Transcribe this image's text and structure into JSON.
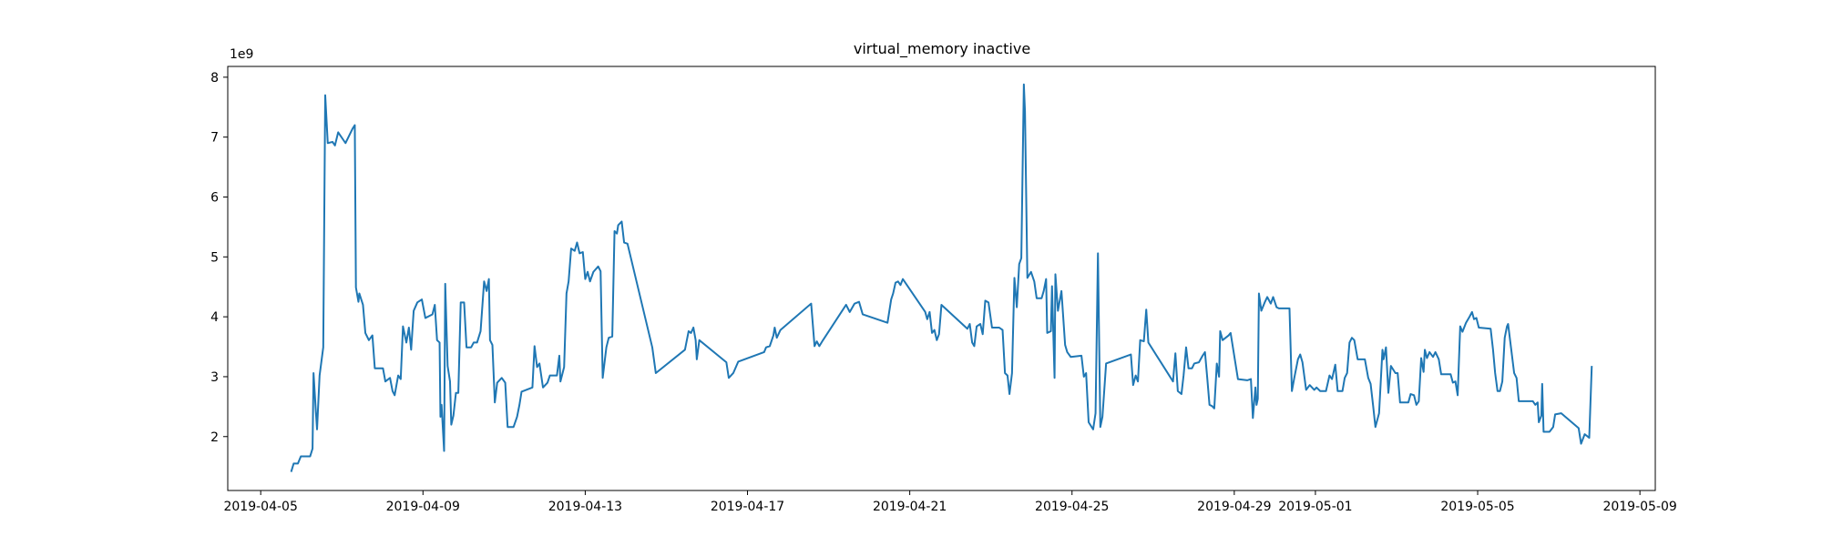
{
  "chart_data": {
    "type": "line",
    "title": "virtual_memory inactive",
    "y_offset_label": "1e9",
    "color": "#1f77b4",
    "xlim": [
      "2019-04-04 04:30",
      "2019-05-09 09:05"
    ],
    "xticks": [
      "2019-04-05",
      "2019-04-09",
      "2019-04-13",
      "2019-04-17",
      "2019-04-21",
      "2019-04-25",
      "2019-04-29",
      "2019-05-01",
      "2019-05-05",
      "2019-05-09"
    ],
    "ylim": [
      1.1,
      8.18
    ],
    "yticks": [
      2,
      3,
      4,
      5,
      6,
      7,
      8
    ],
    "x": [
      "2019-04-05 18:00",
      "2019-04-05 19:30",
      "2019-04-05 22:00",
      "2019-04-05 23:45",
      "2019-04-06 05:15",
      "2019-04-06 06:40",
      "2019-04-06 07:15",
      "2019-04-06 08:40",
      "2019-04-06 09:20",
      "2019-04-06 10:50",
      "2019-04-06 13:00",
      "2019-04-06 14:10",
      "2019-04-06 15:40",
      "2019-04-06 18:30",
      "2019-04-06 19:55",
      "2019-04-06 21:50",
      "2019-04-07 02:10",
      "2019-04-07 06:20",
      "2019-04-07 07:40",
      "2019-04-07 08:20",
      "2019-04-07 09:50",
      "2019-04-07 10:20",
      "2019-04-07 12:30",
      "2019-04-07 13:55",
      "2019-04-07 16:00",
      "2019-04-07 18:05",
      "2019-04-07 19:30",
      "2019-04-08 00:20",
      "2019-04-08 01:45",
      "2019-04-08 04:30",
      "2019-04-08 06:00",
      "2019-04-08 07:15",
      "2019-04-08 09:20",
      "2019-04-08 10:50",
      "2019-04-08 12:10",
      "2019-04-08 14:10",
      "2019-04-08 15:40",
      "2019-04-08 17:00",
      "2019-04-08 18:30",
      "2019-04-08 20:40",
      "2019-04-08 23:20",
      "2019-04-09 01:25",
      "2019-04-09 05:35",
      "2019-04-09 07:00",
      "2019-04-09 08:20",
      "2019-04-09 09:50",
      "2019-04-09 10:20",
      "2019-04-09 11:00",
      "2019-04-09 12:30",
      "2019-04-09 13:10",
      "2019-04-09 14:35",
      "2019-04-09 16:00",
      "2019-04-09 16:45",
      "2019-04-09 18:00",
      "2019-04-09 19:30",
      "2019-04-09 20:55",
      "2019-04-09 22:20",
      "2019-04-10 00:20",
      "2019-04-10 01:45",
      "2019-04-10 04:30",
      "2019-04-10 06:00",
      "2019-04-10 08:00",
      "2019-04-10 10:05",
      "2019-04-10 12:10",
      "2019-04-10 13:40",
      "2019-04-10 15:00",
      "2019-04-10 15:40",
      "2019-04-10 17:05",
      "2019-04-10 18:30",
      "2019-04-10 19:55",
      "2019-04-10 22:35",
      "2019-04-11 00:40",
      "2019-04-11 02:05",
      "2019-04-11 05:35",
      "2019-04-11 07:40",
      "2019-04-11 09:05",
      "2019-04-11 10:20",
      "2019-04-11 16:45",
      "2019-04-11 18:00",
      "2019-04-11 19:30",
      "2019-04-11 20:55",
      "2019-04-11 23:00",
      "2019-04-12 01:40",
      "2019-04-12 03:05",
      "2019-04-12 07:15",
      "2019-04-12 08:40",
      "2019-04-12 09:20",
      "2019-04-12 11:30",
      "2019-04-12 12:55",
      "2019-04-12 14:10",
      "2019-04-12 15:40",
      "2019-04-12 17:45",
      "2019-04-12 19:10",
      "2019-04-12 20:40",
      "2019-04-12 22:35",
      "2019-04-13 00:00",
      "2019-04-13 01:25",
      "2019-04-13 02:50",
      "2019-04-13 04:50",
      "2019-04-13 07:40",
      "2019-04-13 09:05",
      "2019-04-13 10:20",
      "2019-04-13 12:30",
      "2019-04-13 13:55",
      "2019-04-13 16:00",
      "2019-04-13 17:20",
      "2019-04-13 18:45",
      "2019-04-13 19:30",
      "2019-04-13 21:35",
      "2019-04-13 23:00",
      "2019-04-14 01:00",
      "2019-04-14 15:40",
      "2019-04-14 17:45",
      "2019-04-15 11:00",
      "2019-04-15 13:10",
      "2019-04-15 14:35",
      "2019-04-15 16:00",
      "2019-04-15 17:20",
      "2019-04-15 18:00",
      "2019-04-15 19:30",
      "2019-04-16 11:30",
      "2019-04-16 12:55",
      "2019-04-16 15:35",
      "2019-04-16 18:30",
      "2019-04-17 09:50",
      "2019-04-17 11:00",
      "2019-04-17 13:10",
      "2019-04-17 15:20",
      "2019-04-17 16:05",
      "2019-04-17 17:20",
      "2019-04-17 19:30",
      "2019-04-18 13:40",
      "2019-04-18 15:40",
      "2019-04-18 17:00",
      "2019-04-18 18:30",
      "2019-04-18 20:40",
      "2019-04-19 10:20",
      "2019-04-19 12:30",
      "2019-04-19 15:20",
      "2019-04-19 18:00",
      "2019-04-19 20:10",
      "2019-04-20 10:50",
      "2019-04-20 13:00",
      "2019-04-20 14:10",
      "2019-04-20 15:35",
      "2019-04-20 17:05",
      "2019-04-20 18:30",
      "2019-04-20 19:55",
      "2019-04-21 09:10",
      "2019-04-21 10:20",
      "2019-04-21 11:45",
      "2019-04-21 13:10",
      "2019-04-21 14:35",
      "2019-04-21 16:00",
      "2019-04-21 17:20",
      "2019-04-21 18:45",
      "2019-04-22 10:05",
      "2019-04-22 11:30",
      "2019-04-22 12:55",
      "2019-04-22 14:10",
      "2019-04-22 15:35",
      "2019-04-22 17:45",
      "2019-04-22 19:10",
      "2019-04-22 20:40",
      "2019-04-22 22:35",
      "2019-04-23 00:40",
      "2019-04-23 04:50",
      "2019-04-23 06:55",
      "2019-04-23 08:20",
      "2019-04-23 09:50",
      "2019-04-23 11:00",
      "2019-04-23 12:30",
      "2019-04-23 13:55",
      "2019-04-23 15:20",
      "2019-04-23 16:45",
      "2019-04-23 18:00",
      "2019-04-23 19:30",
      "2019-04-23 20:10",
      "2019-04-23 21:35",
      "2019-04-23 23:45",
      "2019-04-24 01:40",
      "2019-04-24 03:05",
      "2019-04-24 06:00",
      "2019-04-24 07:15",
      "2019-04-24 08:40",
      "2019-04-24 09:20",
      "2019-04-24 11:30",
      "2019-04-24 12:10",
      "2019-04-24 13:40",
      "2019-04-24 14:10",
      "2019-04-24 15:40",
      "2019-04-24 17:45",
      "2019-04-24 19:55",
      "2019-04-24 21:10",
      "2019-04-24 23:15",
      "2019-04-25 05:35",
      "2019-04-25 07:00",
      "2019-04-25 08:20",
      "2019-04-25 09:50",
      "2019-04-25 12:30",
      "2019-04-25 13:55",
      "2019-04-25 15:20",
      "2019-04-25 16:45",
      "2019-04-25 18:00",
      "2019-04-25 20:10",
      "2019-04-26 10:50",
      "2019-04-26 12:10",
      "2019-04-26 13:40",
      "2019-04-26 15:00",
      "2019-04-26 16:20",
      "2019-04-26 18:30",
      "2019-04-26 19:55",
      "2019-04-26 21:10",
      "2019-04-27 11:45",
      "2019-04-27 13:10",
      "2019-04-27 14:35",
      "2019-04-27 16:45",
      "2019-04-27 18:00",
      "2019-04-27 19:30",
      "2019-04-27 20:55",
      "2019-04-27 23:00",
      "2019-04-28 00:20",
      "2019-04-28 03:05",
      "2019-04-28 05:15",
      "2019-04-28 06:40",
      "2019-04-28 08:00",
      "2019-04-28 09:20",
      "2019-04-28 10:50",
      "2019-04-28 12:10",
      "2019-04-28 13:40",
      "2019-04-28 15:00",
      "2019-04-28 15:40",
      "2019-04-28 17:05",
      "2019-04-28 20:40",
      "2019-04-28 21:50",
      "2019-04-29 02:10",
      "2019-04-29 07:40",
      "2019-04-29 09:50",
      "2019-04-29 11:00",
      "2019-04-29 12:30",
      "2019-04-29 13:10",
      "2019-04-29 13:55",
      "2019-04-29 14:35",
      "2019-04-29 16:00",
      "2019-04-29 18:00",
      "2019-04-29 19:30",
      "2019-04-29 21:35",
      "2019-04-29 23:00",
      "2019-04-30 01:00",
      "2019-04-30 02:25",
      "2019-04-30 08:40",
      "2019-04-30 10:05",
      "2019-04-30 11:30",
      "2019-04-30 13:40",
      "2019-04-30 15:00",
      "2019-04-30 16:20",
      "2019-04-30 18:30",
      "2019-04-30 20:40",
      "2019-04-30 23:20",
      "2019-05-01 00:40",
      "2019-05-01 02:50",
      "2019-05-01 06:15",
      "2019-05-01 08:20",
      "2019-05-01 09:50",
      "2019-05-01 11:45",
      "2019-05-01 13:10",
      "2019-05-01 16:00",
      "2019-05-01 17:20",
      "2019-05-01 18:45",
      "2019-05-01 20:10",
      "2019-05-01 21:35",
      "2019-05-01 23:00",
      "2019-05-02 01:00",
      "2019-05-02 05:15",
      "2019-05-02 07:15",
      "2019-05-02 08:40",
      "2019-05-02 10:05",
      "2019-05-02 11:30",
      "2019-05-02 13:40",
      "2019-05-02 15:40",
      "2019-05-02 16:20",
      "2019-05-02 17:45",
      "2019-05-02 19:10",
      "2019-05-02 20:40",
      "2019-05-02 23:20",
      "2019-05-03 00:40",
      "2019-05-03 02:05",
      "2019-05-03 07:00",
      "2019-05-03 08:20",
      "2019-05-03 10:20",
      "2019-05-03 11:45",
      "2019-05-03 13:10",
      "2019-05-03 14:35",
      "2019-05-03 16:00",
      "2019-05-03 16:45",
      "2019-05-03 18:00",
      "2019-05-03 19:30",
      "2019-05-03 21:35",
      "2019-05-03 23:00",
      "2019-05-04 01:00",
      "2019-05-04 02:25",
      "2019-05-04 08:00",
      "2019-05-04 09:20",
      "2019-05-04 10:50",
      "2019-05-04 12:10",
      "2019-05-04 13:40",
      "2019-05-04 15:00",
      "2019-05-04 17:05",
      "2019-05-04 19:10",
      "2019-05-04 20:40",
      "2019-05-04 21:50",
      "2019-05-04 23:15",
      "2019-05-05 00:40",
      "2019-05-05 07:40",
      "2019-05-05 09:05",
      "2019-05-05 10:20",
      "2019-05-05 11:45",
      "2019-05-05 13:10",
      "2019-05-05 14:35",
      "2019-05-05 16:00",
      "2019-05-05 17:20",
      "2019-05-05 18:00",
      "2019-05-05 21:35",
      "2019-05-05 23:00",
      "2019-05-06 00:20",
      "2019-05-06 08:40",
      "2019-05-06 10:05",
      "2019-05-06 11:30",
      "2019-05-06 12:10",
      "2019-05-06 13:40",
      "2019-05-06 14:10",
      "2019-05-06 15:00",
      "2019-05-06 18:30",
      "2019-05-06 20:40",
      "2019-05-06 21:50",
      "2019-05-07 01:25",
      "2019-05-07 11:45",
      "2019-05-07 13:10",
      "2019-05-07 15:20",
      "2019-05-07 18:00",
      "2019-05-07 19:30"
    ],
    "values": [
      1.41,
      1.55,
      1.55,
      1.67,
      1.67,
      1.8,
      3.06,
      2.4,
      2.12,
      3.02,
      3.49,
      7.7,
      6.9,
      6.92,
      6.86,
      7.08,
      6.9,
      7.14,
      7.2,
      4.49,
      4.25,
      4.39,
      4.2,
      3.73,
      3.61,
      3.69,
      3.14,
      3.14,
      2.92,
      2.98,
      2.76,
      2.69,
      3.02,
      2.96,
      3.84,
      3.57,
      3.82,
      3.45,
      4.1,
      4.24,
      4.29,
      3.98,
      4.04,
      4.2,
      3.61,
      3.57,
      2.33,
      2.53,
      1.76,
      4.55,
      3.18,
      2.92,
      2.2,
      2.35,
      2.73,
      2.73,
      4.24,
      4.24,
      3.49,
      3.49,
      3.57,
      3.57,
      3.76,
      4.59,
      4.43,
      4.63,
      3.61,
      3.53,
      2.57,
      2.9,
      2.98,
      2.9,
      2.16,
      2.16,
      2.33,
      2.53,
      2.75,
      2.82,
      3.51,
      3.16,
      3.22,
      2.82,
      2.9,
      3.02,
      3.02,
      3.35,
      2.92,
      3.16,
      4.39,
      4.59,
      5.14,
      5.1,
      5.24,
      5.06,
      5.08,
      4.63,
      4.75,
      4.59,
      4.75,
      4.84,
      4.76,
      2.98,
      3.49,
      3.65,
      3.67,
      5.43,
      5.39,
      5.53,
      5.59,
      5.24,
      5.22,
      3.49,
      3.06,
      3.45,
      3.76,
      3.73,
      3.82,
      3.61,
      3.29,
      3.61,
      3.24,
      2.98,
      3.06,
      3.25,
      3.41,
      3.49,
      3.51,
      3.69,
      3.82,
      3.65,
      3.78,
      4.22,
      3.51,
      3.59,
      3.51,
      3.61,
      4.2,
      4.08,
      4.22,
      4.25,
      4.04,
      3.9,
      4.29,
      4.39,
      4.57,
      4.59,
      4.53,
      4.63,
      4.08,
      3.96,
      4.08,
      3.73,
      3.78,
      3.61,
      3.71,
      4.2,
      3.8,
      3.88,
      3.57,
      3.51,
      3.84,
      3.88,
      3.71,
      4.27,
      4.24,
      3.82,
      3.82,
      3.78,
      3.06,
      3.02,
      2.71,
      3.06,
      4.65,
      4.16,
      4.88,
      4.98,
      7.88,
      7.43,
      4.65,
      4.75,
      4.59,
      4.31,
      4.31,
      4.43,
      4.63,
      3.73,
      3.76,
      4.51,
      2.98,
      4.71,
      4.1,
      4.43,
      3.53,
      3.41,
      3.33,
      3.35,
      3.0,
      3.06,
      2.24,
      2.12,
      2.39,
      5.06,
      2.16,
      2.33,
      3.22,
      3.37,
      2.86,
      3.02,
      2.92,
      3.61,
      3.59,
      4.12,
      3.57,
      2.92,
      3.39,
      2.76,
      2.71,
      3.02,
      3.49,
      3.14,
      3.14,
      3.22,
      3.24,
      3.35,
      3.41,
      2.98,
      2.53,
      2.51,
      2.47,
      3.22,
      3.0,
      3.76,
      3.61,
      3.69,
      3.73,
      2.96,
      2.94,
      2.96,
      2.31,
      2.82,
      2.53,
      2.63,
      4.39,
      4.1,
      4.24,
      4.33,
      4.22,
      4.33,
      4.16,
      4.14,
      4.14,
      2.76,
      2.98,
      3.29,
      3.37,
      3.24,
      2.78,
      2.86,
      2.78,
      2.82,
      2.76,
      2.76,
      3.02,
      2.96,
      3.2,
      2.76,
      2.76,
      2.98,
      3.06,
      3.57,
      3.65,
      3.61,
      3.29,
      3.29,
      2.98,
      2.88,
      2.53,
      2.16,
      2.39,
      3.45,
      3.29,
      3.49,
      2.73,
      3.18,
      3.06,
      3.06,
      2.57,
      2.57,
      2.71,
      2.69,
      2.53,
      2.59,
      3.31,
      3.08,
      3.45,
      3.31,
      3.41,
      3.33,
      3.41,
      3.29,
      3.04,
      3.04,
      2.9,
      2.92,
      2.69,
      3.84,
      3.75,
      3.9,
      4.0,
      4.08,
      3.96,
      3.98,
      3.82,
      3.8,
      3.45,
      3.06,
      2.76,
      2.76,
      2.92,
      3.65,
      3.84,
      3.88,
      3.06,
      2.98,
      2.59,
      2.59,
      2.53,
      2.57,
      2.24,
      2.35,
      2.88,
      2.08,
      2.08,
      2.16,
      2.37,
      2.39,
      2.14,
      1.88,
      2.04,
      1.98,
      3.18
    ]
  }
}
